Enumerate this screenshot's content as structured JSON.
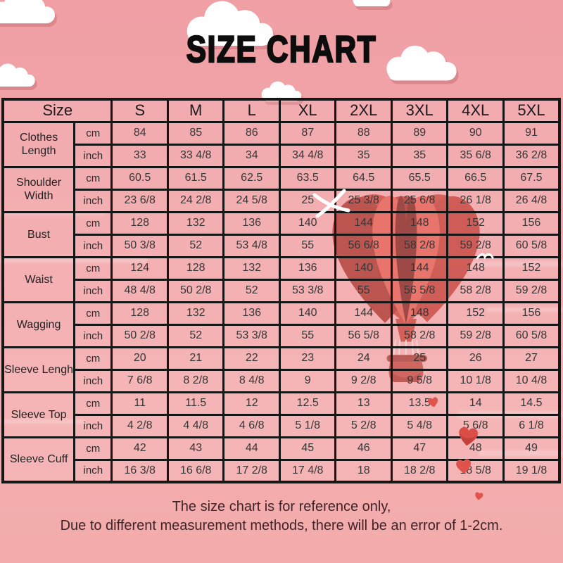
{
  "title": "SIZE CHART",
  "chart_data": {
    "type": "table",
    "title": "SIZE CHART",
    "corner_header": "Size",
    "size_columns": [
      "S",
      "M",
      "L",
      "XL",
      "2XL",
      "3XL",
      "4XL",
      "5XL"
    ],
    "measurements": [
      {
        "label": "Clothes Length",
        "units": [
          {
            "unit": "cm",
            "values": [
              "84",
              "85",
              "86",
              "87",
              "88",
              "89",
              "90",
              "91"
            ]
          },
          {
            "unit": "inch",
            "values": [
              "33",
              "33 4/8",
              "34",
              "34 4/8",
              "35",
              "35",
              "35 6/8",
              "36 2/8"
            ]
          }
        ]
      },
      {
        "label": "Shoulder Width",
        "units": [
          {
            "unit": "cm",
            "values": [
              "60.5",
              "61.5",
              "62.5",
              "63.5",
              "64.5",
              "65.5",
              "66.5",
              "67.5"
            ]
          },
          {
            "unit": "inch",
            "values": [
              "23 6/8",
              "24 2/8",
              "24 5/8",
              "25",
              "25 3/8",
              "25 6/8",
              "26 1/8",
              "26 4/8"
            ]
          }
        ]
      },
      {
        "label": "Bust",
        "units": [
          {
            "unit": "cm",
            "values": [
              "128",
              "132",
              "136",
              "140",
              "144",
              "148",
              "152",
              "156"
            ]
          },
          {
            "unit": "inch",
            "values": [
              "50 3/8",
              "52",
              "53 4/8",
              "55",
              "56 6/8",
              "58 2/8",
              "59 2/8",
              "60 5/8"
            ]
          }
        ]
      },
      {
        "label": "Waist",
        "units": [
          {
            "unit": "cm",
            "values": [
              "124",
              "128",
              "132",
              "136",
              "140",
              "144",
              "148",
              "152"
            ]
          },
          {
            "unit": "inch",
            "values": [
              "48 4/8",
              "50 2/8",
              "52",
              "53 3/8",
              "55",
              "56 5/8",
              "58 2/8",
              "59 2/8"
            ]
          }
        ]
      },
      {
        "label": "Wagging",
        "units": [
          {
            "unit": "cm",
            "values": [
              "128",
              "132",
              "136",
              "140",
              "144",
              "148",
              "152",
              "156"
            ]
          },
          {
            "unit": "inch",
            "values": [
              "50 2/8",
              "52",
              "53 3/8",
              "55",
              "56 5/8",
              "58 2/8",
              "59 2/8",
              "60 5/8"
            ]
          }
        ]
      },
      {
        "label": "Sleeve Lengh",
        "units": [
          {
            "unit": "cm",
            "values": [
              "20",
              "21",
              "22",
              "23",
              "24",
              "25",
              "26",
              "27"
            ]
          },
          {
            "unit": "inch",
            "values": [
              "7 6/8",
              "8 2/8",
              "8 4/8",
              "9",
              "9 2/8",
              "9 5/8",
              "10 1/8",
              "10 4/8"
            ]
          }
        ]
      },
      {
        "label": "Sleeve Top",
        "units": [
          {
            "unit": "cm",
            "values": [
              "11",
              "11.5",
              "12",
              "12.5",
              "13",
              "13.5",
              "14",
              "14.5"
            ]
          },
          {
            "unit": "inch",
            "values": [
              "4 2/8",
              "4 4/8",
              "4 6/8",
              "5 1/8",
              "5 2/8",
              "5 4/8",
              "5 6/8",
              "6 1/8"
            ]
          }
        ]
      },
      {
        "label": "Sleeve Cuff",
        "units": [
          {
            "unit": "cm",
            "values": [
              "42",
              "43",
              "44",
              "45",
              "46",
              "47",
              "48",
              "49"
            ]
          },
          {
            "unit": "inch",
            "values": [
              "16 3/8",
              "16 6/8",
              "17 2/8",
              "17 4/8",
              "18",
              "18 2/8",
              "18 5/8",
              "19 1/8"
            ]
          }
        ]
      }
    ]
  },
  "footer": {
    "line1": "The size chart is for reference only,",
    "line2": "Due to different measurement methods, there will be an error of 1-2cm."
  },
  "decor": {
    "balloon_icon": "heart-hot-air-balloon",
    "cloud_count": 6,
    "mini_heart_count": 4,
    "bird_count": 2,
    "background_pink": "#f2a5a9",
    "accent_red": "#d84b44",
    "border_black": "#161616"
  }
}
